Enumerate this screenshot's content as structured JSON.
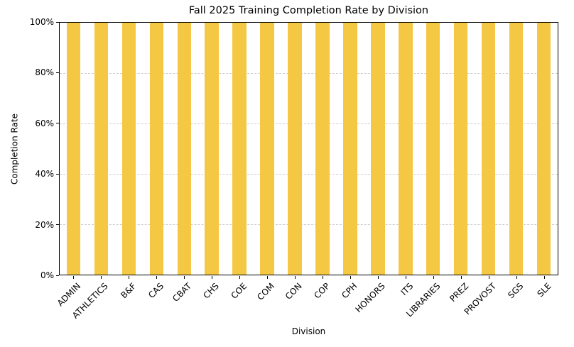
{
  "chart_data": {
    "type": "bar",
    "title": "Fall 2025 Training Completion Rate by Division",
    "xlabel": "Division",
    "ylabel": "Completion Rate",
    "categories": [
      "ADMIN",
      "ATHLETICS",
      "B&F",
      "CAS",
      "CBAT",
      "CHS",
      "COE",
      "COM",
      "CON",
      "COP",
      "CPH",
      "HONORS",
      "ITS",
      "LIBRARIES",
      "PREZ",
      "PROVOST",
      "SGS",
      "SLE"
    ],
    "values": [
      100,
      100,
      100,
      100,
      100,
      100,
      100,
      100,
      100,
      100,
      100,
      100,
      100,
      100,
      100,
      100,
      100,
      100
    ],
    "value_unit": "%",
    "ylim": [
      0,
      100
    ],
    "yticks": [
      0,
      20,
      40,
      60,
      80,
      100
    ],
    "ytick_labels": [
      "0%",
      "20%",
      "40%",
      "60%",
      "80%",
      "100%"
    ],
    "xtick_rotation_deg": 45,
    "bar_color": "#F5C843",
    "bar_width_fraction": 0.5,
    "grid": {
      "horizontal": true,
      "style": "dashed",
      "color": "#cccccc"
    },
    "axis_color": "#000000",
    "legend": "none"
  }
}
